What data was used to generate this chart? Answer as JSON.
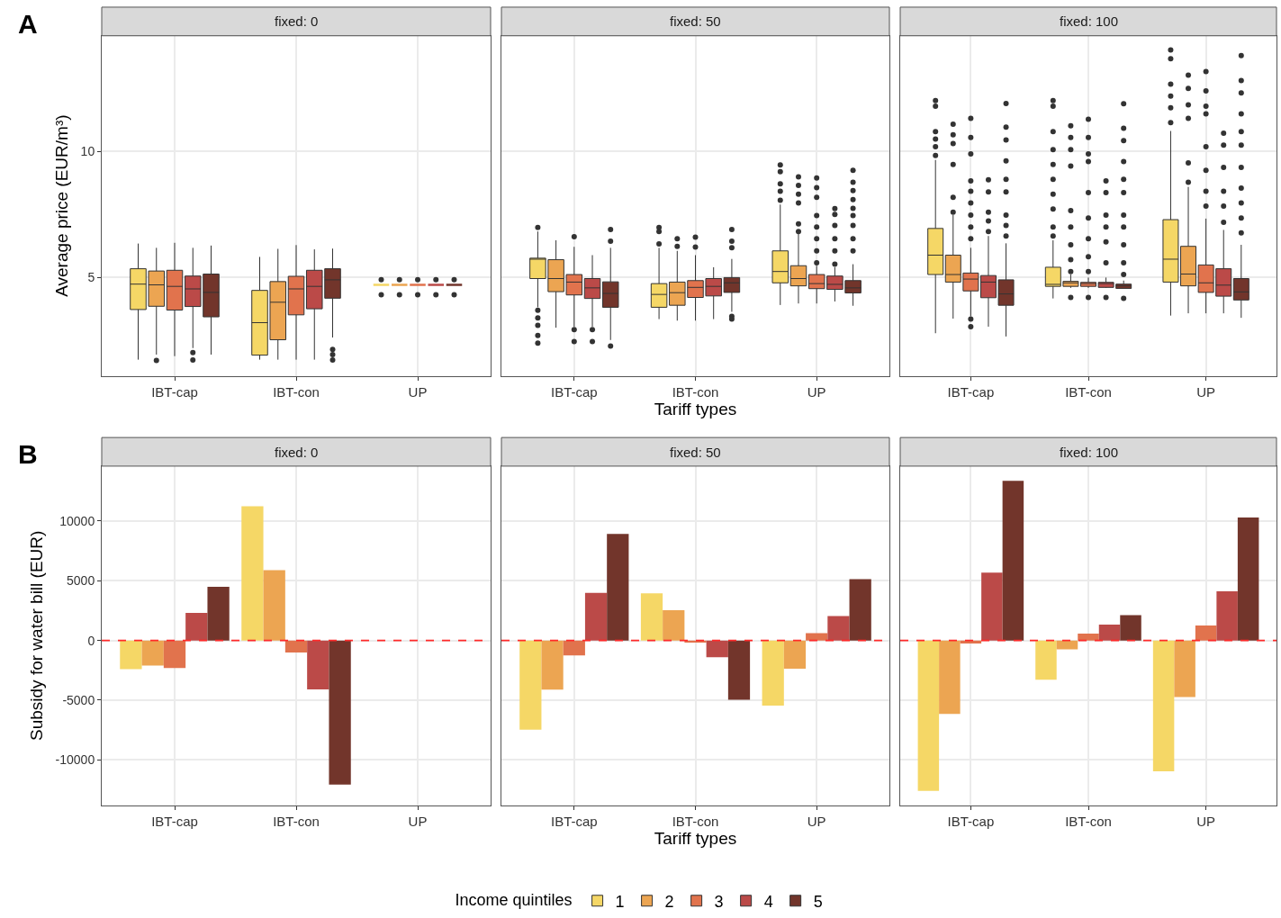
{
  "chart_data": [
    {
      "type": "box",
      "title": "fixed: 0",
      "ylabel": "Average price (EUR/m³)",
      "annotations": [
        "A"
      ],
      "legend_title": "Income quintiles",
      "legend": "bottom",
      "grid": true,
      "ylim": [
        1.1,
        14.6
      ],
      "yticks": [
        5,
        10
      ],
      "categories": [
        "IBT-cap",
        "IBT-con",
        "UP"
      ],
      "series": [
        {
          "name": "1",
          "color": "#f5d766",
          "boxes": [
            {
              "low": 1.74,
              "q1": 3.73,
              "median": 4.74,
              "q3": 5.35,
              "high": 6.35
            },
            {
              "low": 1.74,
              "q1": 1.92,
              "median": 3.21,
              "q3": 4.49,
              "high": 5.82
            },
            {
              "low": 4.71,
              "q1": 4.71,
              "median": 4.71,
              "q3": 4.71,
              "high": 4.71,
              "outliers": [
                4.92,
                4.32
              ]
            }
          ]
        },
        {
          "name": "2",
          "color": "#eca552",
          "boxes": [
            {
              "low": 1.94,
              "q1": 3.86,
              "median": 4.71,
              "q3": 5.26,
              "high": 6.18,
              "outliers": [
                1.71
              ]
            },
            {
              "low": 1.74,
              "q1": 2.53,
              "median": 4.02,
              "q3": 4.84,
              "high": 6.14
            },
            {
              "low": 4.71,
              "q1": 4.71,
              "median": 4.71,
              "q3": 4.71,
              "high": 4.71,
              "outliers": [
                4.92,
                4.32
              ]
            }
          ]
        },
        {
          "name": "3",
          "color": "#e1734d",
          "boxes": [
            {
              "low": 1.88,
              "q1": 3.71,
              "median": 4.65,
              "q3": 5.29,
              "high": 6.38
            },
            {
              "low": 1.74,
              "q1": 3.52,
              "median": 4.55,
              "q3": 5.05,
              "high": 6.29
            },
            {
              "low": 4.71,
              "q1": 4.71,
              "median": 4.71,
              "q3": 4.71,
              "high": 4.71,
              "outliers": [
                4.92,
                4.32
              ]
            }
          ]
        },
        {
          "name": "4",
          "color": "#bb4a48",
          "boxes": [
            {
              "low": 2.2,
              "q1": 3.85,
              "median": 4.55,
              "q3": 5.06,
              "high": 6.18,
              "outliers": [
                2.02,
                1.73
              ]
            },
            {
              "low": 1.74,
              "q1": 3.76,
              "median": 4.65,
              "q3": 5.29,
              "high": 6.12
            },
            {
              "low": 4.71,
              "q1": 4.71,
              "median": 4.71,
              "q3": 4.71,
              "high": 4.71,
              "outliers": [
                4.92,
                4.32
              ]
            }
          ]
        },
        {
          "name": "5",
          "color": "#72352b",
          "boxes": [
            {
              "low": 1.94,
              "q1": 3.44,
              "median": 4.41,
              "q3": 5.14,
              "high": 6.27
            },
            {
              "low": 2.62,
              "q1": 4.18,
              "median": 4.91,
              "q3": 5.35,
              "high": 6.15,
              "outliers": [
                2.15,
                1.94,
                1.73
              ]
            },
            {
              "low": 4.71,
              "q1": 4.71,
              "median": 4.71,
              "q3": 4.71,
              "high": 4.71,
              "outliers": [
                4.92,
                4.32
              ]
            }
          ]
        }
      ]
    },
    {
      "type": "box",
      "title": "fixed: 50",
      "xlabel": "Tariff types",
      "grid": true,
      "tick_labels": "x",
      "ylim": [
        1.1,
        14.6
      ],
      "yticks": [
        5,
        10
      ],
      "categories": [
        "IBT-cap",
        "IBT-con",
        "UP"
      ],
      "series": [
        {
          "name": "1",
          "color": "#f5d766",
          "boxes": [
            {
              "low": 3.82,
              "q1": 4.96,
              "median": 5.73,
              "q3": 5.77,
              "high": 6.83,
              "outliers": [
                6.99,
                3.7,
                3.4,
                3.1,
                2.7,
                2.4
              ]
            },
            {
              "low": 3.35,
              "q1": 3.82,
              "median": 4.33,
              "q3": 4.76,
              "high": 6.18,
              "outliers": [
                6.99,
                6.83,
                6.34
              ]
            },
            {
              "low": 3.91,
              "q1": 4.79,
              "median": 5.24,
              "q3": 6.06,
              "high": 7.9,
              "outliers": [
                9.47,
                9.2,
                8.72,
                8.43,
                8.07
              ]
            }
          ]
        },
        {
          "name": "2",
          "color": "#eca552",
          "boxes": [
            {
              "low": 3.01,
              "q1": 4.44,
              "median": 4.96,
              "q3": 5.71,
              "high": 6.48
            },
            {
              "low": 3.29,
              "q1": 3.9,
              "median": 4.4,
              "q3": 4.82,
              "high": 6.06,
              "outliers": [
                6.54,
                6.24
              ]
            },
            {
              "low": 3.97,
              "q1": 4.67,
              "median": 4.96,
              "q3": 5.47,
              "high": 6.77,
              "outliers": [
                9.0,
                8.66,
                8.31,
                7.96,
                7.13,
                6.83
              ]
            }
          ]
        },
        {
          "name": "3",
          "color": "#e1734d",
          "boxes": [
            {
              "low": 3.05,
              "q1": 4.31,
              "median": 4.82,
              "q3": 5.12,
              "high": 6.22,
              "outliers": [
                6.62,
                2.93,
                2.46
              ]
            },
            {
              "low": 3.29,
              "q1": 4.21,
              "median": 4.61,
              "q3": 4.88,
              "high": 5.89,
              "outliers": [
                6.6,
                6.21
              ]
            },
            {
              "low": 3.97,
              "q1": 4.56,
              "median": 4.76,
              "q3": 5.12,
              "high": 5.47,
              "outliers": [
                8.95,
                8.57,
                8.19,
                7.46,
                7.01,
                6.54,
                6.06,
                5.59
              ]
            }
          ]
        },
        {
          "name": "4",
          "color": "#bb4a48",
          "boxes": [
            {
              "low": 3.05,
              "q1": 4.17,
              "median": 4.59,
              "q3": 4.96,
              "high": 5.89,
              "outliers": [
                2.93,
                2.46
              ]
            },
            {
              "low": 3.35,
              "q1": 4.27,
              "median": 4.65,
              "q3": 4.96,
              "high": 5.41
            },
            {
              "low": 4.05,
              "q1": 4.53,
              "median": 4.73,
              "q3": 5.06,
              "high": 5.41,
              "outliers": [
                7.74,
                7.51,
                7.07,
                6.54,
                6.06,
                5.53
              ]
            }
          ]
        },
        {
          "name": "5",
          "color": "#72352b",
          "boxes": [
            {
              "low": 2.52,
              "q1": 3.82,
              "median": 4.37,
              "q3": 4.83,
              "high": 6.18,
              "outliers": [
                6.91,
                6.44,
                2.28
              ]
            },
            {
              "low": 3.64,
              "q1": 4.41,
              "median": 4.79,
              "q3": 5.0,
              "high": 5.74,
              "outliers": [
                6.91,
                6.44,
                6.18,
                3.46,
                3.35
              ]
            },
            {
              "low": 3.88,
              "q1": 4.39,
              "median": 4.59,
              "q3": 4.88,
              "high": 5.53,
              "outliers": [
                9.26,
                8.78,
                8.45,
                8.1,
                7.75,
                7.46,
                7.07,
                6.54,
                6.06
              ]
            }
          ]
        }
      ]
    },
    {
      "type": "box",
      "title": "fixed: 100",
      "grid": true,
      "tick_labels": "x",
      "ylim": [
        1.1,
        14.6
      ],
      "yticks": [
        5,
        10
      ],
      "categories": [
        "IBT-cap",
        "IBT-con",
        "UP"
      ],
      "series": [
        {
          "name": "1",
          "color": "#f5d766",
          "boxes": [
            {
              "low": 2.79,
              "q1": 5.12,
              "median": 5.89,
              "q3": 6.95,
              "high": 9.67,
              "outliers": [
                12.03,
                11.8,
                10.79,
                10.5,
                10.2,
                9.85
              ]
            },
            {
              "low": 4.17,
              "q1": 4.65,
              "median": 4.73,
              "q3": 5.41,
              "high": 6.48,
              "outliers": [
                12.03,
                11.8,
                10.79,
                10.08,
                9.49,
                8.9,
                8.31,
                7.72,
                7.01,
                6.65
              ]
            },
            {
              "low": 3.49,
              "q1": 4.82,
              "median": 5.73,
              "q3": 7.3,
              "high": 10.82,
              "outliers": [
                14.04,
                13.69,
                12.68,
                12.21,
                11.74,
                11.15
              ]
            }
          ]
        },
        {
          "name": "2",
          "color": "#eca552",
          "boxes": [
            {
              "low": 3.37,
              "q1": 4.82,
              "median": 5.12,
              "q3": 5.89,
              "high": 7.48,
              "outliers": [
                11.09,
                10.67,
                10.32,
                9.49,
                8.19,
                7.6
              ]
            },
            {
              "low": 4.59,
              "q1": 4.65,
              "median": 4.79,
              "q3": 4.85,
              "high": 5.12,
              "outliers": [
                11.03,
                10.56,
                10.08,
                9.43,
                7.66,
                7.01,
                6.3,
                5.71,
                5.24,
                4.21
              ]
            },
            {
              "low": 3.58,
              "q1": 4.67,
              "median": 5.14,
              "q3": 6.24,
              "high": 8.6,
              "outliers": [
                13.04,
                12.51,
                11.86,
                11.32,
                9.55,
                8.78
              ]
            }
          ]
        },
        {
          "name": "3",
          "color": "#e1734d",
          "boxes": [
            {
              "low": 3.46,
              "q1": 4.47,
              "median": 4.94,
              "q3": 5.18,
              "high": 6.18,
              "outliers": [
                11.32,
                10.56,
                9.91,
                8.84,
                8.43,
                7.96,
                7.48,
                7.01,
                6.54,
                3.35,
                3.05
              ]
            },
            {
              "low": 4.59,
              "q1": 4.65,
              "median": 4.76,
              "q3": 4.81,
              "high": 5.0,
              "outliers": [
                11.29,
                10.56,
                9.91,
                9.61,
                8.37,
                7.36,
                6.54,
                5.83,
                5.24,
                4.21
              ]
            },
            {
              "low": 3.58,
              "q1": 4.41,
              "median": 4.79,
              "q3": 5.5,
              "high": 7.34,
              "outliers": [
                13.18,
                12.41,
                11.8,
                11.5,
                10.2,
                9.26,
                8.43,
                7.84
              ]
            }
          ]
        },
        {
          "name": "4",
          "color": "#bb4a48",
          "boxes": [
            {
              "low": 3.05,
              "q1": 4.2,
              "median": 4.82,
              "q3": 5.08,
              "high": 6.65,
              "outliers": [
                8.88,
                8.4,
                7.6,
                7.25,
                6.83
              ]
            },
            {
              "low": 4.59,
              "q1": 4.61,
              "median": 4.76,
              "q3": 4.81,
              "high": 5.0,
              "outliers": [
                8.84,
                8.37,
                7.48,
                7.01,
                6.42,
                5.59,
                4.21
              ]
            },
            {
              "low": 3.58,
              "q1": 4.26,
              "median": 4.7,
              "q3": 5.35,
              "high": 6.89,
              "outliers": [
                10.73,
                10.26,
                9.37,
                8.43,
                7.84,
                7.19
              ]
            }
          ]
        },
        {
          "name": "5",
          "color": "#72352b",
          "boxes": [
            {
              "low": 2.66,
              "q1": 3.9,
              "median": 4.35,
              "q3": 4.91,
              "high": 6.36,
              "outliers": [
                11.91,
                10.97,
                10.46,
                9.63,
                8.9,
                8.4,
                7.48,
                7.07,
                6.65
              ]
            },
            {
              "low": 4.57,
              "q1": 4.57,
              "median": 4.67,
              "q3": 4.74,
              "high": 4.88,
              "outliers": [
                11.9,
                10.93,
                10.44,
                9.61,
                8.9,
                8.37,
                7.48,
                7.01,
                6.3,
                5.59,
                5.12,
                4.17
              ]
            },
            {
              "low": 3.4,
              "q1": 4.11,
              "median": 4.43,
              "q3": 4.96,
              "high": 6.3,
              "outliers": [
                13.81,
                12.82,
                12.33,
                11.5,
                10.79,
                10.26,
                9.37,
                8.55,
                7.96,
                7.36,
                6.77
              ]
            }
          ]
        }
      ]
    },
    {
      "type": "bar",
      "title": "fixed: 0",
      "ylabel": "Subsidy for water bill (EUR)",
      "annotations": [
        "B"
      ],
      "grid": true,
      "ylim": [
        -13800,
        14600
      ],
      "yticks": [
        -10000,
        -5000,
        0,
        5000,
        10000
      ],
      "categories": [
        "IBT-cap",
        "IBT-con",
        "UP"
      ],
      "ref_lines": [
        {
          "axis": "y",
          "value": 0,
          "color": "#ff2a2a",
          "line_style": "dashed"
        }
      ],
      "series": [
        {
          "name": "1",
          "color": "#f5d766",
          "values": [
            -2400,
            11250,
            0
          ]
        },
        {
          "name": "2",
          "color": "#eca552",
          "values": [
            -2100,
            5890,
            0
          ]
        },
        {
          "name": "3",
          "color": "#e1734d",
          "values": [
            -2300,
            -1000,
            0
          ]
        },
        {
          "name": "4",
          "color": "#bb4a48",
          "values": [
            2300,
            -4090,
            0
          ]
        },
        {
          "name": "5",
          "color": "#72352b",
          "values": [
            4500,
            -12070,
            0
          ]
        }
      ]
    },
    {
      "type": "bar",
      "title": "fixed: 50",
      "xlabel": "Tariff types",
      "grid": true,
      "tick_labels": "x",
      "ylim": [
        -13800,
        14600
      ],
      "yticks": [
        -10000,
        -5000,
        0,
        5000,
        10000
      ],
      "categories": [
        "IBT-cap",
        "IBT-con",
        "UP"
      ],
      "ref_lines": [
        {
          "axis": "y",
          "value": 0,
          "color": "#ff2a2a",
          "line_style": "dashed"
        }
      ],
      "series": [
        {
          "name": "1",
          "color": "#f5d766",
          "values": [
            -7480,
            3940,
            -5460
          ]
        },
        {
          "name": "2",
          "color": "#eca552",
          "values": [
            -4110,
            2540,
            -2370
          ]
        },
        {
          "name": "3",
          "color": "#e1734d",
          "values": [
            -1250,
            -170,
            620
          ]
        },
        {
          "name": "4",
          "color": "#bb4a48",
          "values": [
            3990,
            -1400,
            2040
          ]
        },
        {
          "name": "5",
          "color": "#72352b",
          "values": [
            8930,
            -4960,
            5140
          ]
        }
      ]
    },
    {
      "type": "bar",
      "title": "fixed: 100",
      "grid": true,
      "tick_labels": "x",
      "ylim": [
        -13800,
        14600
      ],
      "yticks": [
        -10000,
        -5000,
        0,
        5000,
        10000
      ],
      "categories": [
        "IBT-cap",
        "IBT-con",
        "UP"
      ],
      "ref_lines": [
        {
          "axis": "y",
          "value": 0,
          "color": "#ff2a2a",
          "line_style": "dashed"
        }
      ],
      "series": [
        {
          "name": "1",
          "color": "#f5d766",
          "values": [
            -12590,
            -3290,
            -10950
          ]
        },
        {
          "name": "2",
          "color": "#eca552",
          "values": [
            -6160,
            -750,
            -4740
          ]
        },
        {
          "name": "3",
          "color": "#e1734d",
          "values": [
            -250,
            570,
            1250
          ]
        },
        {
          "name": "4",
          "color": "#bb4a48",
          "values": [
            5690,
            1320,
            4110
          ]
        },
        {
          "name": "5",
          "color": "#72352b",
          "values": [
            13370,
            2120,
            10300
          ]
        }
      ]
    }
  ]
}
